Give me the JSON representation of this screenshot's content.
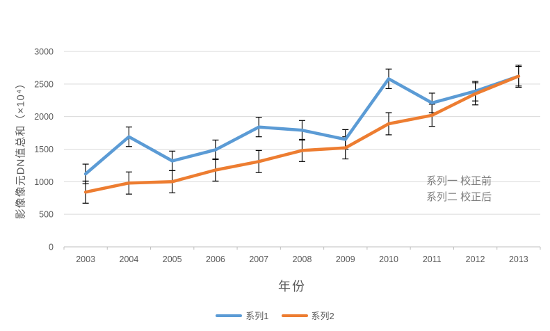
{
  "chart_data": {
    "type": "line",
    "title": "",
    "xlabel": "年份",
    "ylabel": "影像像元DN值总和（×10⁴）",
    "categories": [
      "2003",
      "2004",
      "2005",
      "2006",
      "2007",
      "2008",
      "2009",
      "2010",
      "2011",
      "2012",
      "2013"
    ],
    "yticks": [
      0,
      500,
      1000,
      1500,
      2000,
      2500,
      3000
    ],
    "ylim": [
      0,
      3000
    ],
    "grid": "horizontal",
    "legend_position": "bottom",
    "annotations": [
      "系列一 校正前",
      "系列二 校正后"
    ],
    "series": [
      {
        "name": "系列1",
        "color": "#5B9BD5",
        "values": [
          1120,
          1690,
          1320,
          1490,
          1840,
          1790,
          1650,
          2580,
          2210,
          2390,
          2620
        ],
        "error_bar": 150
      },
      {
        "name": "系列2",
        "color": "#ED7D31",
        "values": [
          840,
          980,
          1000,
          1180,
          1310,
          1480,
          1520,
          1890,
          2020,
          2350,
          2620
        ],
        "error_bar": 170
      }
    ],
    "error_bar_color": "#000000",
    "axis_color": "#BFBFBF",
    "gridline_color": "#D9D9D9",
    "tick_label_color": "#595959",
    "annotation_color": "#7f7f7f"
  }
}
